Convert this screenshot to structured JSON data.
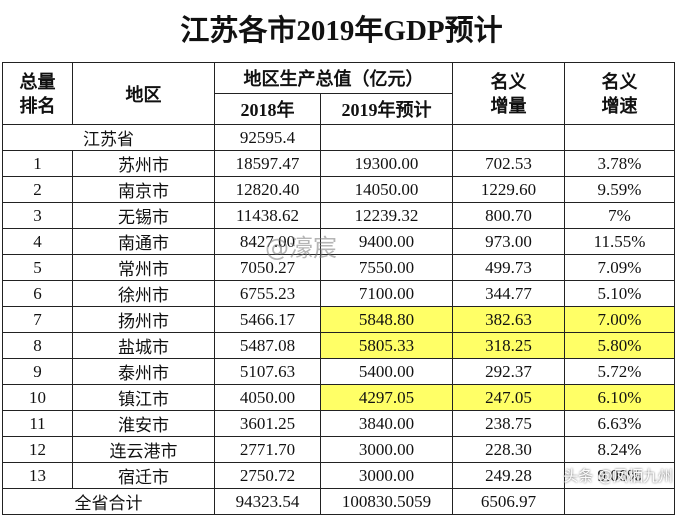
{
  "title": "江苏各市2019年GDP预计",
  "header": {
    "rank": "总量排名",
    "region": "地区",
    "gdp": "地区生产总值（亿元）",
    "y2018": "2018年",
    "y2019": "2019年预计",
    "increment": "名义增量",
    "growth": "名义增速"
  },
  "table": {
    "highlight_color": "#ffff66",
    "rows": [
      {
        "cells": [
          "江苏省",
          "92595.4",
          null,
          null,
          null
        ]
      },
      {
        "cells": [
          "1",
          "苏州市",
          "18597.47",
          "19300.00",
          "702.53",
          "3.78%"
        ]
      },
      {
        "cells": [
          "2",
          "南京市",
          "12820.40",
          "14050.00",
          "1229.60",
          "9.59%"
        ]
      },
      {
        "cells": [
          "3",
          "无锡市",
          "11438.62",
          "12239.32",
          "800.70",
          "7%"
        ]
      },
      {
        "cells": [
          "4",
          "南通市",
          "8427.00",
          "9400.00",
          "973.00",
          "11.55%"
        ]
      },
      {
        "cells": [
          "5",
          "常州市",
          "7050.27",
          "7550.00",
          "499.73",
          "7.09%"
        ]
      },
      {
        "cells": [
          "6",
          "徐州市",
          "6755.23",
          "7100.00",
          "344.77",
          "5.10%"
        ]
      },
      {
        "cells": [
          "7",
          "扬州市",
          "5466.17",
          "5848.80",
          "382.63",
          "7.00%"
        ],
        "highlighted": true
      },
      {
        "cells": [
          "8",
          "盐城市",
          "5487.08",
          "5805.33",
          "318.25",
          "5.80%"
        ],
        "highlighted": true
      },
      {
        "cells": [
          "9",
          "泰州市",
          "5107.63",
          "5400.00",
          "292.37",
          "5.72%"
        ]
      },
      {
        "cells": [
          "10",
          "镇江市",
          "4050.00",
          "4297.05",
          "247.05",
          "6.10%"
        ],
        "highlighted": true
      },
      {
        "cells": [
          "11",
          "淮安市",
          "3601.25",
          "3840.00",
          "238.75",
          "6.63%"
        ]
      },
      {
        "cells": [
          "12",
          "连云港市",
          "2771.70",
          "3000.00",
          "228.30",
          "8.24%"
        ]
      },
      {
        "cells": [
          "13",
          "宿迁市",
          "2750.72",
          "3000.00",
          "249.28",
          "9.06%"
        ]
      },
      {
        "cells": [
          "全省合计",
          "94323.54",
          "100830.5059",
          "6506.97",
          null
        ]
      }
    ]
  },
  "watermarks": {
    "center": "@濠宸",
    "corner": "头条 @凤栖九州"
  }
}
